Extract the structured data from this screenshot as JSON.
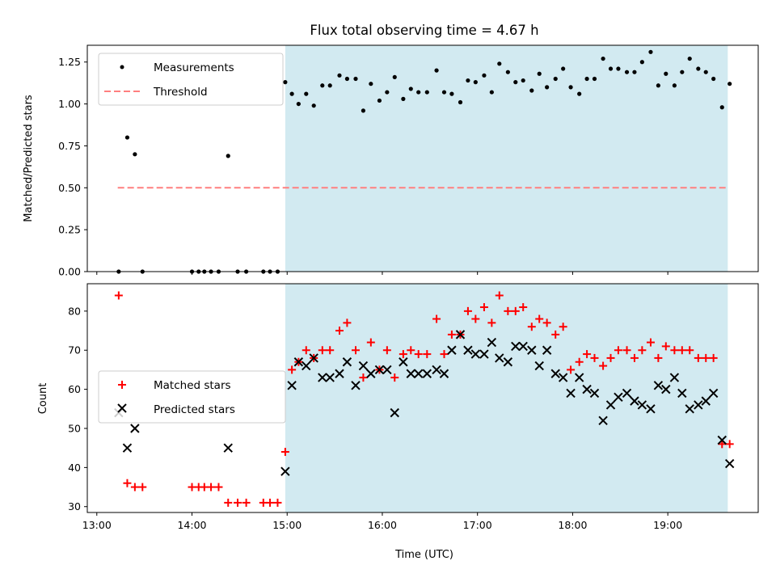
{
  "chart_data": {
    "title": "Flux total observing time = 4.67 h",
    "shared_x": {
      "label": "Time (UTC)",
      "unit": "hours",
      "range": [
        12.9,
        19.95
      ],
      "ticks": [
        13,
        14,
        15,
        16,
        17,
        18,
        19
      ],
      "tick_labels": [
        "13:00",
        "14:00",
        "15:00",
        "16:00",
        "17:00",
        "18:00",
        "19:00"
      ]
    },
    "observing_window": {
      "start": 14.98,
      "end": 19.63,
      "color": "#add8e6"
    },
    "panels": [
      {
        "id": "ratio",
        "type": "scatter",
        "ylabel": "Matched/Predicted stars",
        "ylim": [
          0,
          1.35
        ],
        "yticks": [
          0,
          0.25,
          0.5,
          0.75,
          1.0,
          1.25
        ],
        "ytick_labels": [
          "0.00",
          "0.25",
          "0.50",
          "0.75",
          "1.00",
          "1.25"
        ],
        "legend": {
          "position": "upper-left",
          "entries": [
            "Measurements",
            "Threshold"
          ]
        },
        "series": [
          {
            "name": "Measurements",
            "color": "#000000",
            "marker": "dot",
            "x": [
              13.23,
              13.32,
              13.4,
              13.48,
              14.0,
              14.07,
              14.13,
              14.2,
              14.28,
              14.38,
              14.48,
              14.57,
              14.75,
              14.82,
              14.9,
              14.98,
              15.05,
              15.12,
              15.2,
              15.28,
              15.37,
              15.45,
              15.55,
              15.63,
              15.72,
              15.8,
              15.88,
              15.97,
              16.05,
              16.13,
              16.22,
              16.3,
              16.38,
              16.47,
              16.57,
              16.65,
              16.73,
              16.82,
              16.9,
              16.98,
              17.07,
              17.15,
              17.23,
              17.32,
              17.4,
              17.48,
              17.57,
              17.65,
              17.73,
              17.82,
              17.9,
              17.98,
              18.07,
              18.15,
              18.23,
              18.32,
              18.4,
              18.48,
              18.57,
              18.65,
              18.73,
              18.82,
              18.9,
              18.98,
              19.07,
              19.15,
              19.23,
              19.32,
              19.4,
              19.48,
              19.57,
              19.65
            ],
            "y": [
              0.0,
              0.8,
              0.7,
              0.0,
              0.0,
              0.0,
              0.0,
              0.0,
              0.0,
              0.69,
              0.0,
              0.0,
              0.0,
              0.0,
              0.0,
              1.13,
              1.06,
              1.0,
              1.06,
              0.99,
              1.11,
              1.11,
              1.17,
              1.15,
              1.15,
              0.96,
              1.12,
              1.02,
              1.07,
              1.16,
              1.03,
              1.09,
              1.07,
              1.07,
              1.2,
              1.07,
              1.06,
              1.01,
              1.14,
              1.13,
              1.17,
              1.07,
              1.24,
              1.19,
              1.13,
              1.14,
              1.08,
              1.18,
              1.1,
              1.15,
              1.21,
              1.1,
              1.06,
              1.15,
              1.15,
              1.27,
              1.21,
              1.21,
              1.19,
              1.19,
              1.25,
              1.31,
              1.11,
              1.18,
              1.11,
              1.19,
              1.27,
              1.21,
              1.19,
              1.15,
              0.98,
              1.12
            ]
          },
          {
            "name": "Threshold",
            "color": "#ff7f7f",
            "style": "dashed-line",
            "x": [
              13.22,
              19.63
            ],
            "y": [
              0.5,
              0.5
            ]
          }
        ]
      },
      {
        "id": "counts",
        "type": "scatter",
        "ylabel": "Count",
        "ylim": [
          28.5,
          87
        ],
        "yticks": [
          30,
          40,
          50,
          60,
          70,
          80
        ],
        "ytick_labels": [
          "30",
          "40",
          "50",
          "60",
          "70",
          "80"
        ],
        "legend": {
          "position": "center-left",
          "entries": [
            "Matched stars",
            "Predicted stars"
          ]
        },
        "series": [
          {
            "name": "Matched stars",
            "color": "#ff0000",
            "marker": "plus",
            "x": [
              13.23,
              13.32,
              13.4,
              13.48,
              14.0,
              14.07,
              14.13,
              14.2,
              14.28,
              14.38,
              14.48,
              14.57,
              14.75,
              14.82,
              14.9,
              14.98,
              15.05,
              15.12,
              15.2,
              15.28,
              15.37,
              15.45,
              15.55,
              15.63,
              15.72,
              15.8,
              15.88,
              15.97,
              16.05,
              16.13,
              16.22,
              16.3,
              16.38,
              16.47,
              16.57,
              16.65,
              16.73,
              16.82,
              16.9,
              16.98,
              17.07,
              17.15,
              17.23,
              17.32,
              17.4,
              17.48,
              17.57,
              17.65,
              17.73,
              17.82,
              17.9,
              17.98,
              18.07,
              18.15,
              18.23,
              18.32,
              18.4,
              18.48,
              18.57,
              18.65,
              18.73,
              18.82,
              18.9,
              18.98,
              19.07,
              19.15,
              19.23,
              19.32,
              19.4,
              19.48,
              19.57,
              19.65
            ],
            "y": [
              84,
              36,
              35,
              35,
              35,
              35,
              35,
              35,
              35,
              31,
              31,
              31,
              31,
              31,
              31,
              44,
              65,
              67,
              70,
              68,
              70,
              70,
              75,
              77,
              70,
              63,
              72,
              65,
              70,
              63,
              69,
              70,
              69,
              69,
              78,
              69,
              74,
              74,
              80,
              78,
              81,
              77,
              84,
              80,
              80,
              81,
              76,
              78,
              77,
              74,
              76,
              65,
              67,
              69,
              68,
              66,
              68,
              70,
              70,
              68,
              70,
              72,
              68,
              71,
              70,
              70,
              70,
              68,
              68,
              68,
              46,
              46
            ]
          },
          {
            "name": "Predicted stars",
            "color": "#000000",
            "marker": "x",
            "x": [
              13.23,
              13.32,
              13.4,
              14.38,
              14.98,
              15.05,
              15.12,
              15.2,
              15.28,
              15.37,
              15.45,
              15.55,
              15.63,
              15.72,
              15.8,
              15.88,
              15.97,
              16.05,
              16.13,
              16.22,
              16.3,
              16.38,
              16.47,
              16.57,
              16.65,
              16.73,
              16.82,
              16.9,
              16.98,
              17.07,
              17.15,
              17.23,
              17.32,
              17.4,
              17.48,
              17.57,
              17.65,
              17.73,
              17.82,
              17.9,
              17.98,
              18.07,
              18.15,
              18.23,
              18.32,
              18.4,
              18.48,
              18.57,
              18.65,
              18.73,
              18.82,
              18.9,
              18.98,
              19.07,
              19.15,
              19.23,
              19.32,
              19.4,
              19.48,
              19.57,
              19.65
            ],
            "y": [
              54,
              45,
              50,
              45,
              39,
              61,
              67,
              66,
              68,
              63,
              63,
              64,
              67,
              61,
              66,
              64,
              65,
              65,
              54,
              67,
              64,
              64,
              64,
              65,
              64,
              70,
              74,
              70,
              69,
              69,
              72,
              68,
              67,
              71,
              71,
              70,
              66,
              70,
              64,
              63,
              59,
              63,
              60,
              59,
              52,
              56,
              58,
              59,
              57,
              56,
              55,
              61,
              60,
              63,
              59,
              55,
              56,
              57,
              59,
              47,
              41
            ]
          }
        ]
      }
    ]
  }
}
